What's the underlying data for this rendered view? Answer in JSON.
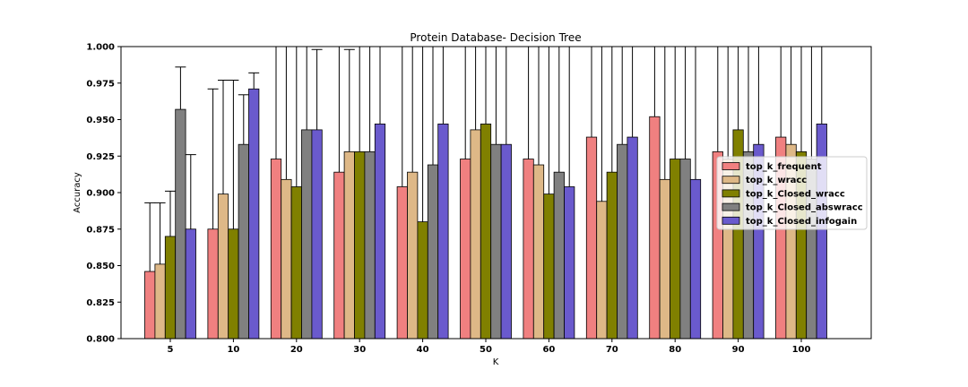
{
  "chart_data": {
    "type": "bar",
    "title": "Protein Database- Decision Tree",
    "xlabel": "K",
    "ylabel": "Accuracy",
    "ylim": [
      0.8,
      1.0
    ],
    "yticks": [
      "0.800",
      "0.825",
      "0.850",
      "0.875",
      "0.900",
      "0.925",
      "0.950",
      "0.975",
      "1.000"
    ],
    "categories": [
      "5",
      "10",
      "20",
      "30",
      "40",
      "50",
      "60",
      "70",
      "80",
      "90",
      "100"
    ],
    "grid": false,
    "legend_position": "center-right",
    "series": [
      {
        "name": "top_k_frequent",
        "color": "#f08080",
        "values": [
          0.846,
          0.875,
          0.923,
          0.914,
          0.904,
          0.923,
          0.923,
          0.938,
          0.952,
          0.928,
          0.938
        ],
        "error_top": [
          0.893,
          0.971,
          1.05,
          1.05,
          1.05,
          1.05,
          1.05,
          1.05,
          1.05,
          1.05,
          1.05
        ]
      },
      {
        "name": "top_k_wracc",
        "color": "#deb887",
        "values": [
          0.851,
          0.899,
          0.909,
          0.928,
          0.914,
          0.943,
          0.919,
          0.894,
          0.909,
          0.923,
          0.933
        ],
        "error_top": [
          0.893,
          0.977,
          1.05,
          0.998,
          1.05,
          1.05,
          1.05,
          1.05,
          1.05,
          1.05,
          1.05
        ]
      },
      {
        "name": "top_k_Closed_wracc",
        "color": "#808000",
        "values": [
          0.87,
          0.875,
          0.904,
          0.928,
          0.88,
          0.947,
          0.899,
          0.914,
          0.923,
          0.943,
          0.928
        ],
        "error_top": [
          0.901,
          0.977,
          1.05,
          1.05,
          1.05,
          1.05,
          1.05,
          1.05,
          1.05,
          1.05,
          1.05
        ]
      },
      {
        "name": "top_k_Closed_abswracc",
        "color": "#808080",
        "values": [
          0.957,
          0.933,
          0.943,
          0.928,
          0.919,
          0.933,
          0.914,
          0.933,
          0.923,
          0.928,
          0.923
        ],
        "error_top": [
          0.986,
          0.967,
          1.05,
          1.05,
          1.05,
          1.05,
          1.05,
          1.05,
          1.05,
          1.05,
          1.05
        ]
      },
      {
        "name": "top_k_Closed_infogain",
        "color": "#6a5acd",
        "values": [
          0.875,
          0.971,
          0.943,
          0.947,
          0.947,
          0.933,
          0.904,
          0.938,
          0.909,
          0.933,
          0.947
        ],
        "error_top": [
          0.926,
          0.982,
          0.998,
          1.05,
          1.05,
          1.05,
          1.05,
          1.05,
          1.05,
          1.05,
          1.05
        ]
      }
    ]
  }
}
